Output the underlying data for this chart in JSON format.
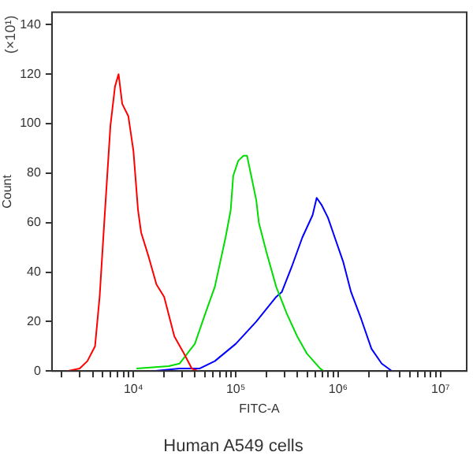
{
  "chart_data": {
    "type": "line",
    "title": "Human A549 cells",
    "xlabel": "FITC-A",
    "ylabel": "Count",
    "annotations": [
      "(×10¹)"
    ],
    "log": "x",
    "grid": false,
    "legend": false,
    "marker": "none",
    "line_style": "solid",
    "xlim": [
      1600,
      18000000
    ],
    "ylim": [
      0,
      145
    ],
    "xticks": [
      {
        "value": 2000,
        "label": null
      },
      {
        "value": 3000,
        "label": null
      },
      {
        "value": 4000,
        "label": null
      },
      {
        "value": 5000,
        "label": null
      },
      {
        "value": 6000,
        "label": null
      },
      {
        "value": 7000,
        "label": null
      },
      {
        "value": 8000,
        "label": null
      },
      {
        "value": 9000,
        "label": null
      },
      {
        "value": 10000,
        "label": "10⁴"
      },
      {
        "value": 20000,
        "label": null
      },
      {
        "value": 30000,
        "label": null
      },
      {
        "value": 40000,
        "label": null
      },
      {
        "value": 50000,
        "label": null
      },
      {
        "value": 60000,
        "label": null
      },
      {
        "value": 70000,
        "label": null
      },
      {
        "value": 80000,
        "label": null
      },
      {
        "value": 90000,
        "label": null
      },
      {
        "value": 100000,
        "label": "10⁵"
      },
      {
        "value": 200000,
        "label": null
      },
      {
        "value": 300000,
        "label": null
      },
      {
        "value": 400000,
        "label": null
      },
      {
        "value": 500000,
        "label": null
      },
      {
        "value": 600000,
        "label": null
      },
      {
        "value": 700000,
        "label": null
      },
      {
        "value": 800000,
        "label": null
      },
      {
        "value": 900000,
        "label": null
      },
      {
        "value": 1000000,
        "label": "10⁶"
      },
      {
        "value": 2000000,
        "label": null
      },
      {
        "value": 3000000,
        "label": null
      },
      {
        "value": 4000000,
        "label": null
      },
      {
        "value": 5000000,
        "label": null
      },
      {
        "value": 6000000,
        "label": null
      },
      {
        "value": 7000000,
        "label": null
      },
      {
        "value": 8000000,
        "label": null
      },
      {
        "value": 9000000,
        "label": null
      },
      {
        "value": 10000000,
        "label": "10⁷"
      }
    ],
    "yticks": [
      0,
      20,
      40,
      60,
      80,
      100,
      120,
      140
    ],
    "series": [
      {
        "color": "#ff0000",
        "x": [
          2265,
          2985,
          3548,
          4217,
          4677,
          5188,
          5957,
          6607,
          7161,
          7772,
          8920,
          10000,
          11090,
          11890,
          14120,
          16790,
          19950,
          25120,
          31260,
          37150,
          42660
        ],
        "values": [
          0,
          1,
          4,
          10,
          30,
          60,
          99,
          115,
          120,
          108,
          103,
          89,
          65,
          56,
          46,
          35,
          30,
          14,
          7,
          1,
          0
        ]
      },
      {
        "color": "#00dd00",
        "x": [
          10720,
          22130,
          28180,
          39810,
          50120,
          62370,
          79430,
          89130,
          94410,
          105700,
          118900,
          128800,
          141300,
          158500,
          167900,
          199500,
          248300,
          316200,
          398100,
          495500,
          668300,
          724400
        ],
        "values": [
          1,
          2,
          3,
          11,
          23,
          34,
          54,
          65,
          79,
          85,
          87,
          87,
          79,
          69,
          60,
          48,
          34,
          23,
          14,
          7,
          1,
          0
        ]
      },
      {
        "color": "#0000ff",
        "x": [
          15670,
          28180,
          44160,
          62370,
          100000,
          158500,
          248300,
          281800,
          350800,
          446700,
          562300,
          616600,
          691800,
          794300,
          891300,
          1122000,
          1334000,
          1679000,
          2113000,
          2661000,
          3350000
        ],
        "values": [
          0,
          1,
          1,
          4,
          11,
          20,
          30,
          32,
          42,
          54,
          63,
          70,
          67,
          62,
          56,
          44,
          32,
          21,
          9,
          3,
          0
        ]
      }
    ]
  }
}
